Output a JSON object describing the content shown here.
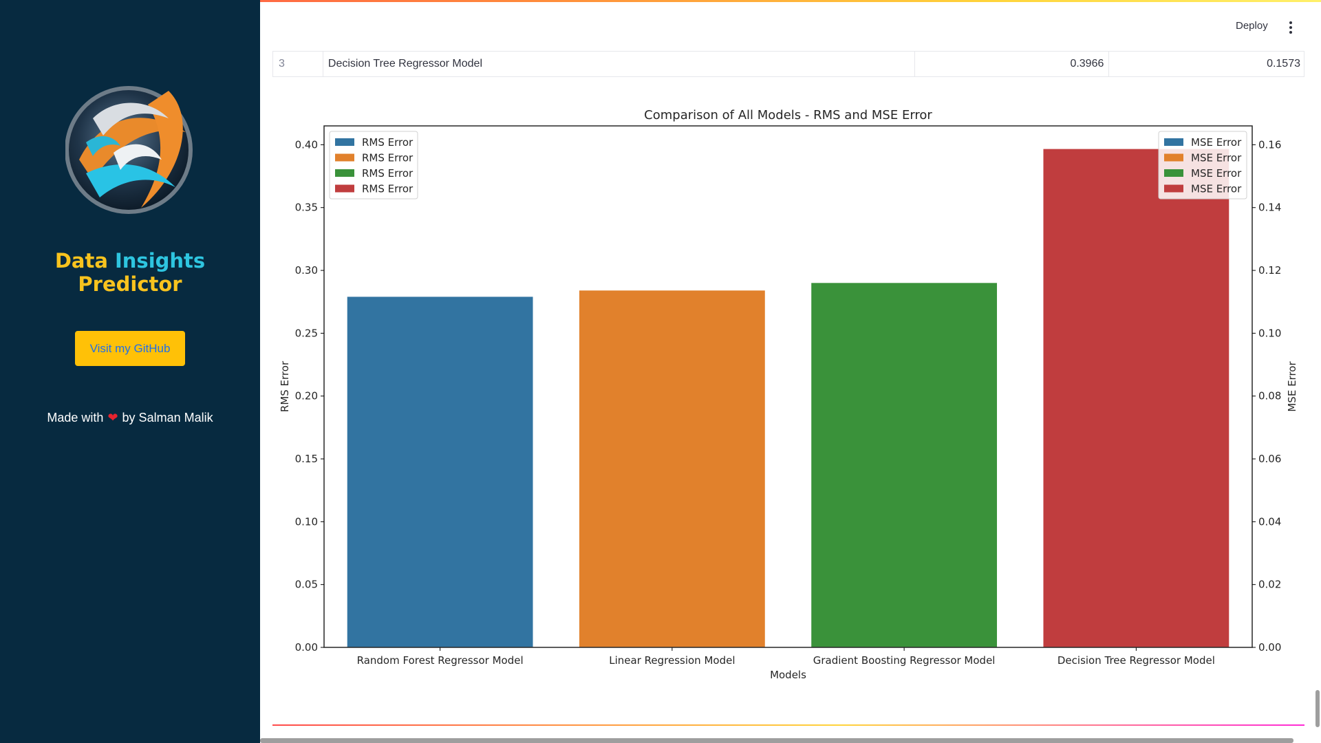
{
  "sidebar": {
    "title_parts": [
      "Data",
      "Insights",
      "Predictor"
    ],
    "github_button": "Visit my GitHub",
    "made_with_prefix": "Made with",
    "made_with_suffix": "by Salman Malik",
    "heart_icon": "heart-icon"
  },
  "header": {
    "deploy_label": "Deploy"
  },
  "table": {
    "row": {
      "index": "3",
      "model": "Decision Tree Regressor Model",
      "rms": "0.3966",
      "mse": "0.1573"
    }
  },
  "colors": {
    "sidebar_bg": "#072a40",
    "title_yellow": "#f8c31e",
    "title_cyan": "#2ec5e0",
    "button_bg": "#ffc107"
  },
  "chart_data": {
    "type": "bar",
    "title": "Comparison of All Models - RMS and MSE Error",
    "xlabel": "Models",
    "ylabel": "RMS Error",
    "y2label": "MSE Error",
    "categories": [
      "Random Forest Regressor Model",
      "Linear Regression Model",
      "Gradient Boosting Regressor Model",
      "Decision Tree Regressor Model"
    ],
    "series": [
      {
        "name": "RMS Error",
        "values": [
          0.279,
          0.284,
          0.29,
          0.3966
        ]
      }
    ],
    "colors": [
      "#3274a1",
      "#e1812c",
      "#3a923a",
      "#c03d3e"
    ],
    "ylim": [
      0,
      0.415
    ],
    "y2lim": [
      0,
      0.166
    ],
    "yticks": [
      "0.00",
      "0.05",
      "0.10",
      "0.15",
      "0.20",
      "0.25",
      "0.30",
      "0.35",
      "0.40"
    ],
    "y2ticks": [
      "0.00",
      "0.02",
      "0.04",
      "0.06",
      "0.08",
      "0.10",
      "0.12",
      "0.14",
      "0.16"
    ],
    "legend_left": [
      "RMS Error",
      "RMS Error",
      "RMS Error",
      "RMS Error"
    ],
    "legend_right": [
      "MSE Error",
      "MSE Error",
      "MSE Error",
      "MSE Error"
    ],
    "legend_left_position": "upper-left",
    "legend_right_position": "upper-right",
    "grid": false
  }
}
